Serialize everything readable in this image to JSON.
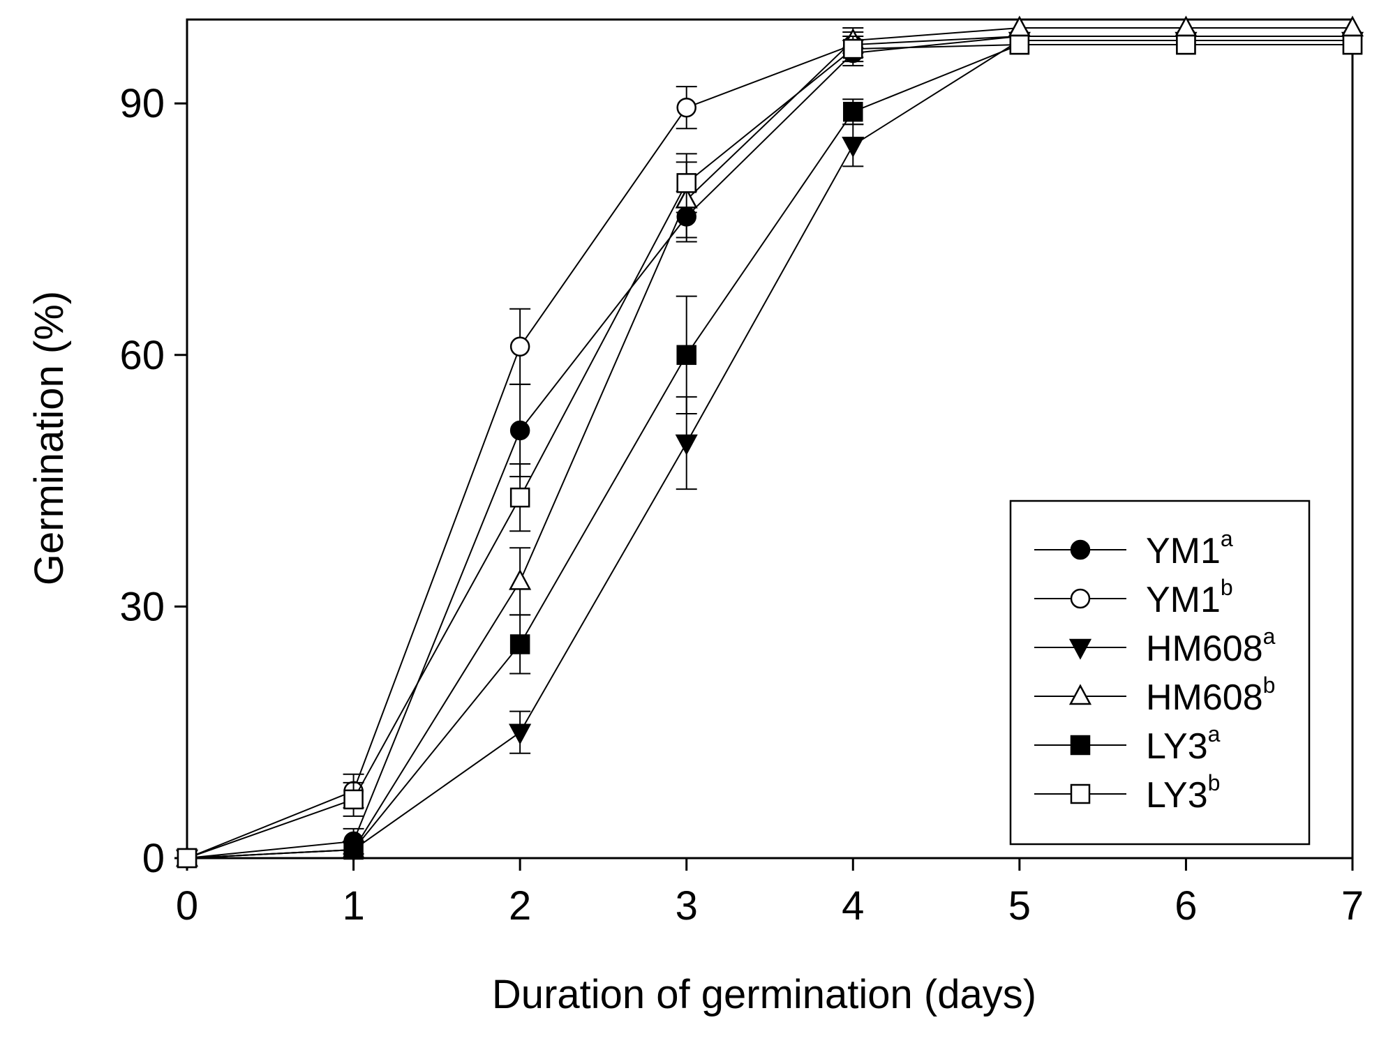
{
  "chart_data": {
    "type": "line",
    "title": "",
    "xlabel": "Duration of germination (days)",
    "ylabel": "Germination (%)",
    "xlim": [
      0,
      7
    ],
    "ylim": [
      0,
      100
    ],
    "xticks": [
      "0",
      "1",
      "2",
      "3",
      "4",
      "5",
      "6",
      "7"
    ],
    "yticks": [
      "0",
      "30",
      "60",
      "90"
    ],
    "legend_position": "bottom-right",
    "x": [
      0,
      1,
      2,
      3,
      4,
      5,
      6,
      7
    ],
    "series": [
      {
        "name": "YM1",
        "sup": "a",
        "marker": "circle",
        "filled": true,
        "values": [
          0,
          2,
          51,
          76.5,
          96,
          98,
          98,
          98
        ],
        "errors": [
          0,
          1.5,
          5.5,
          3,
          1.5,
          0.5,
          0.5,
          0.5
        ]
      },
      {
        "name": "YM1",
        "sup": "b",
        "marker": "circle",
        "filled": false,
        "values": [
          0,
          8,
          61,
          89.5,
          97,
          98,
          98,
          98
        ],
        "errors": [
          0,
          2,
          4.5,
          2.5,
          1.5,
          0.5,
          0.5,
          0.5
        ]
      },
      {
        "name": "HM608",
        "sup": "a",
        "marker": "triangle-down",
        "filled": true,
        "values": [
          0,
          1,
          15,
          49.5,
          85,
          97.5,
          97.5,
          97.5
        ],
        "errors": [
          0,
          1,
          2.5,
          5.5,
          2.5,
          0.5,
          0.5,
          0.5
        ]
      },
      {
        "name": "HM608",
        "sup": "b",
        "marker": "triangle-up",
        "filled": false,
        "values": [
          0,
          1,
          33,
          78.5,
          97.5,
          99,
          99,
          99
        ],
        "errors": [
          0,
          1,
          4,
          4.5,
          1.5,
          0.5,
          0.5,
          0.5
        ]
      },
      {
        "name": "LY3",
        "sup": "a",
        "marker": "square",
        "filled": true,
        "values": [
          0,
          1,
          25.5,
          60,
          89,
          97,
          97,
          97
        ],
        "errors": [
          0,
          1,
          3.5,
          7,
          1.5,
          0.5,
          0.5,
          0.5
        ]
      },
      {
        "name": "LY3",
        "sup": "b",
        "marker": "square",
        "filled": false,
        "values": [
          0,
          7,
          43,
          80.5,
          96.5,
          97,
          97,
          97
        ],
        "errors": [
          0,
          2,
          4,
          3.5,
          1.5,
          0.5,
          0.5,
          0.5
        ]
      }
    ]
  }
}
